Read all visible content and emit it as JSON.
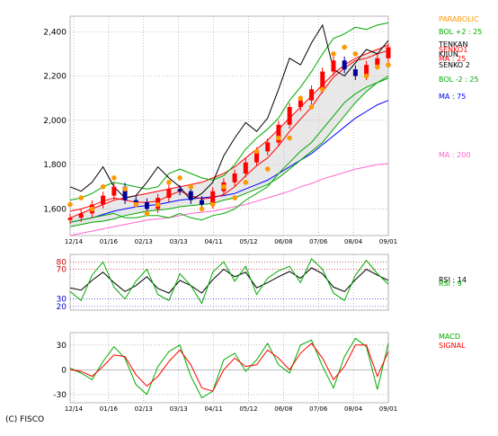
{
  "copyright": "(C) FISCO",
  "colors": {
    "parabolic": "#ff9900",
    "bollinger": "#00aa00",
    "ichimoku_a": "#ff0000",
    "ichimoku_b": "#000000",
    "senko_span2": "#00aa00",
    "ma75": "#0000ff",
    "ma200": "#ff66cc",
    "rsi_a": "#000000",
    "rsi_b": "#00aa00",
    "macd": "#00aa00",
    "signal": "#ff0000",
    "candle_up": "#ff0000",
    "candle_down": "#000099"
  },
  "chart_data": [
    {
      "type": "line",
      "panel": "price",
      "y_ticks": [
        "2,400",
        "2,200",
        "2,000",
        "1,800",
        "1,600"
      ],
      "y_tick_values": [
        2400,
        2200,
        2000,
        1800,
        1600
      ],
      "ylim": [
        1480,
        2470
      ],
      "x_ticks": [
        "12/14",
        "01/16",
        "02/13",
        "03/13",
        "04/11",
        "05/12",
        "06/08",
        "07/06",
        "08/04",
        "09/01"
      ],
      "legend": [
        {
          "label": "PARABOLIC",
          "color": "#ff9900"
        },
        {
          "label": "BOL +2 : 25",
          "color": "#00aa00"
        },
        {
          "label": "TENKAN",
          "color": "#000000"
        },
        {
          "label": "SENKO1",
          "color": "#ff0000"
        },
        {
          "label": "KIJUN",
          "color": "#000000"
        },
        {
          "label": "MA : 25",
          "color": "#ff0000"
        },
        {
          "label": "SENKO 2",
          "color": "#000000"
        },
        {
          "label": "BOL -2 : 25",
          "color": "#00aa00"
        },
        {
          "label": "MA : 75",
          "color": "#0000ff"
        },
        {
          "label": "MA : 200",
          "color": "#ff66cc"
        }
      ],
      "series": [
        {
          "name": "BOL +2 : 25",
          "values": [
            1640,
            1650,
            1670,
            1700,
            1720,
            1710,
            1700,
            1690,
            1700,
            1760,
            1780,
            1760,
            1740,
            1730,
            1750,
            1800,
            1870,
            1920,
            1960,
            2010,
            2090,
            2150,
            2220,
            2300,
            2370,
            2390,
            2420,
            2410,
            2430,
            2440
          ]
        },
        {
          "name": "BOL -2 : 25",
          "values": [
            1540,
            1550,
            1560,
            1570,
            1580,
            1560,
            1560,
            1570,
            1570,
            1560,
            1580,
            1560,
            1550,
            1570,
            1580,
            1600,
            1640,
            1670,
            1700,
            1760,
            1810,
            1860,
            1900,
            1960,
            2020,
            2080,
            2120,
            2150,
            2170,
            2190
          ]
        },
        {
          "name": "MA : 25",
          "values": [
            1590,
            1600,
            1615,
            1635,
            1650,
            1640,
            1630,
            1630,
            1635,
            1660,
            1680,
            1660,
            1645,
            1650,
            1665,
            1700,
            1750,
            1795,
            1830,
            1885,
            1950,
            2005,
            2060,
            2130,
            2195,
            2235,
            2270,
            2280,
            2300,
            2315
          ]
        },
        {
          "name": "MA : 75",
          "values": [
            1540,
            1550,
            1560,
            1575,
            1590,
            1600,
            1610,
            1615,
            1620,
            1630,
            1640,
            1645,
            1650,
            1655,
            1660,
            1670,
            1690,
            1710,
            1730,
            1760,
            1790,
            1820,
            1850,
            1890,
            1930,
            1970,
            2010,
            2040,
            2070,
            2090
          ]
        },
        {
          "name": "MA : 200",
          "values": [
            1480,
            1490,
            1500,
            1510,
            1520,
            1530,
            1540,
            1550,
            1555,
            1560,
            1570,
            1580,
            1585,
            1590,
            1600,
            1610,
            1620,
            1635,
            1650,
            1665,
            1680,
            1700,
            1715,
            1735,
            1750,
            1765,
            1780,
            1790,
            1800,
            1805
          ]
        },
        {
          "name": "SENKO 2",
          "values": [
            1520,
            1530,
            1540,
            1545,
            1555,
            1570,
            1580,
            1590,
            1595,
            1600,
            1610,
            1615,
            1620,
            1625,
            1640,
            1650,
            1670,
            1690,
            1710,
            1740,
            1780,
            1820,
            1860,
            1900,
            1960,
            2020,
            2080,
            2130,
            2170,
            2200
          ]
        },
        {
          "name": "SENKO1",
          "values": [
            1560,
            1580,
            1600,
            1620,
            1640,
            1650,
            1660,
            1670,
            1680,
            1690,
            1700,
            1710,
            1720,
            1740,
            1760,
            1790,
            1830,
            1870,
            1910,
            1960,
            2010,
            2060,
            2110,
            2160,
            2210,
            2250,
            2280,
            2300,
            2320,
            2340
          ]
        },
        {
          "name": "TENKAN",
          "values": [
            1700,
            1680,
            1720,
            1790,
            1700,
            1650,
            1660,
            1720,
            1790,
            1740,
            1700,
            1640,
            1670,
            1720,
            1840,
            1920,
            1990,
            1950,
            2010,
            2140,
            2280,
            2250,
            2350,
            2430,
            2230,
            2200,
            2260,
            2320,
            2300,
            2360
          ]
        },
        {
          "name": "Close",
          "values": [
            1560,
            1580,
            1620,
            1660,
            1700,
            1640,
            1630,
            1600,
            1650,
            1690,
            1680,
            1640,
            1620,
            1680,
            1720,
            1760,
            1810,
            1860,
            1900,
            1980,
            2060,
            2090,
            2140,
            2220,
            2270,
            2230,
            2200,
            2250,
            2280,
            2330
          ]
        },
        {
          "name": "PARABOLIC",
          "values": [
            1620,
            1650,
            1600,
            1700,
            1740,
            1690,
            1620,
            1580,
            1620,
            1720,
            1740,
            1700,
            1600,
            1620,
            1700,
            1650,
            1720,
            1860,
            1780,
            1920,
            1920,
            2100,
            2060,
            2140,
            2300,
            2330,
            2300,
            2200,
            2240,
            2250
          ]
        }
      ]
    },
    {
      "type": "line",
      "panel": "rsi",
      "y_ticks": [
        "80",
        "70",
        "30",
        "20"
      ],
      "y_tick_values": [
        80,
        70,
        30,
        20
      ],
      "ylim": [
        15,
        90
      ],
      "legend": [
        {
          "label": "RSI : 14",
          "color": "#000000"
        },
        {
          "label": "RSI : 9",
          "color": "#00aa00"
        }
      ],
      "series": [
        {
          "name": "RSI : 14",
          "values": [
            45,
            42,
            55,
            66,
            52,
            40,
            48,
            60,
            44,
            38,
            55,
            48,
            38,
            56,
            70,
            60,
            66,
            45,
            52,
            60,
            67,
            58,
            72,
            64,
            46,
            40,
            56,
            70,
            62,
            55
          ]
        },
        {
          "name": "RSI : 9",
          "values": [
            40,
            28,
            62,
            80,
            46,
            30,
            54,
            70,
            36,
            28,
            64,
            48,
            24,
            66,
            80,
            54,
            74,
            36,
            58,
            68,
            74,
            52,
            84,
            70,
            38,
            28,
            62,
            82,
            64,
            50
          ]
        }
      ]
    },
    {
      "type": "line",
      "panel": "macd",
      "y_ticks": [
        "30",
        "0",
        "-30"
      ],
      "y_tick_values": [
        30,
        0,
        -30
      ],
      "ylim": [
        -40,
        45
      ],
      "legend": [
        {
          "label": "MACD",
          "color": "#00aa00"
        },
        {
          "label": "SIGNAL",
          "color": "#ff0000"
        }
      ],
      "series": [
        {
          "name": "MACD",
          "values": [
            2,
            -4,
            -12,
            10,
            28,
            14,
            -18,
            -30,
            4,
            22,
            30,
            -8,
            -34,
            -26,
            12,
            20,
            -2,
            12,
            32,
            6,
            -4,
            30,
            36,
            4,
            -22,
            16,
            38,
            28,
            -24,
            32
          ]
        },
        {
          "name": "SIGNAL",
          "values": [
            0,
            -2,
            -8,
            4,
            18,
            16,
            -6,
            -20,
            -8,
            10,
            24,
            6,
            -22,
            -26,
            0,
            14,
            4,
            6,
            24,
            14,
            0,
            20,
            32,
            14,
            -12,
            4,
            30,
            30,
            -8,
            22
          ]
        }
      ]
    }
  ]
}
